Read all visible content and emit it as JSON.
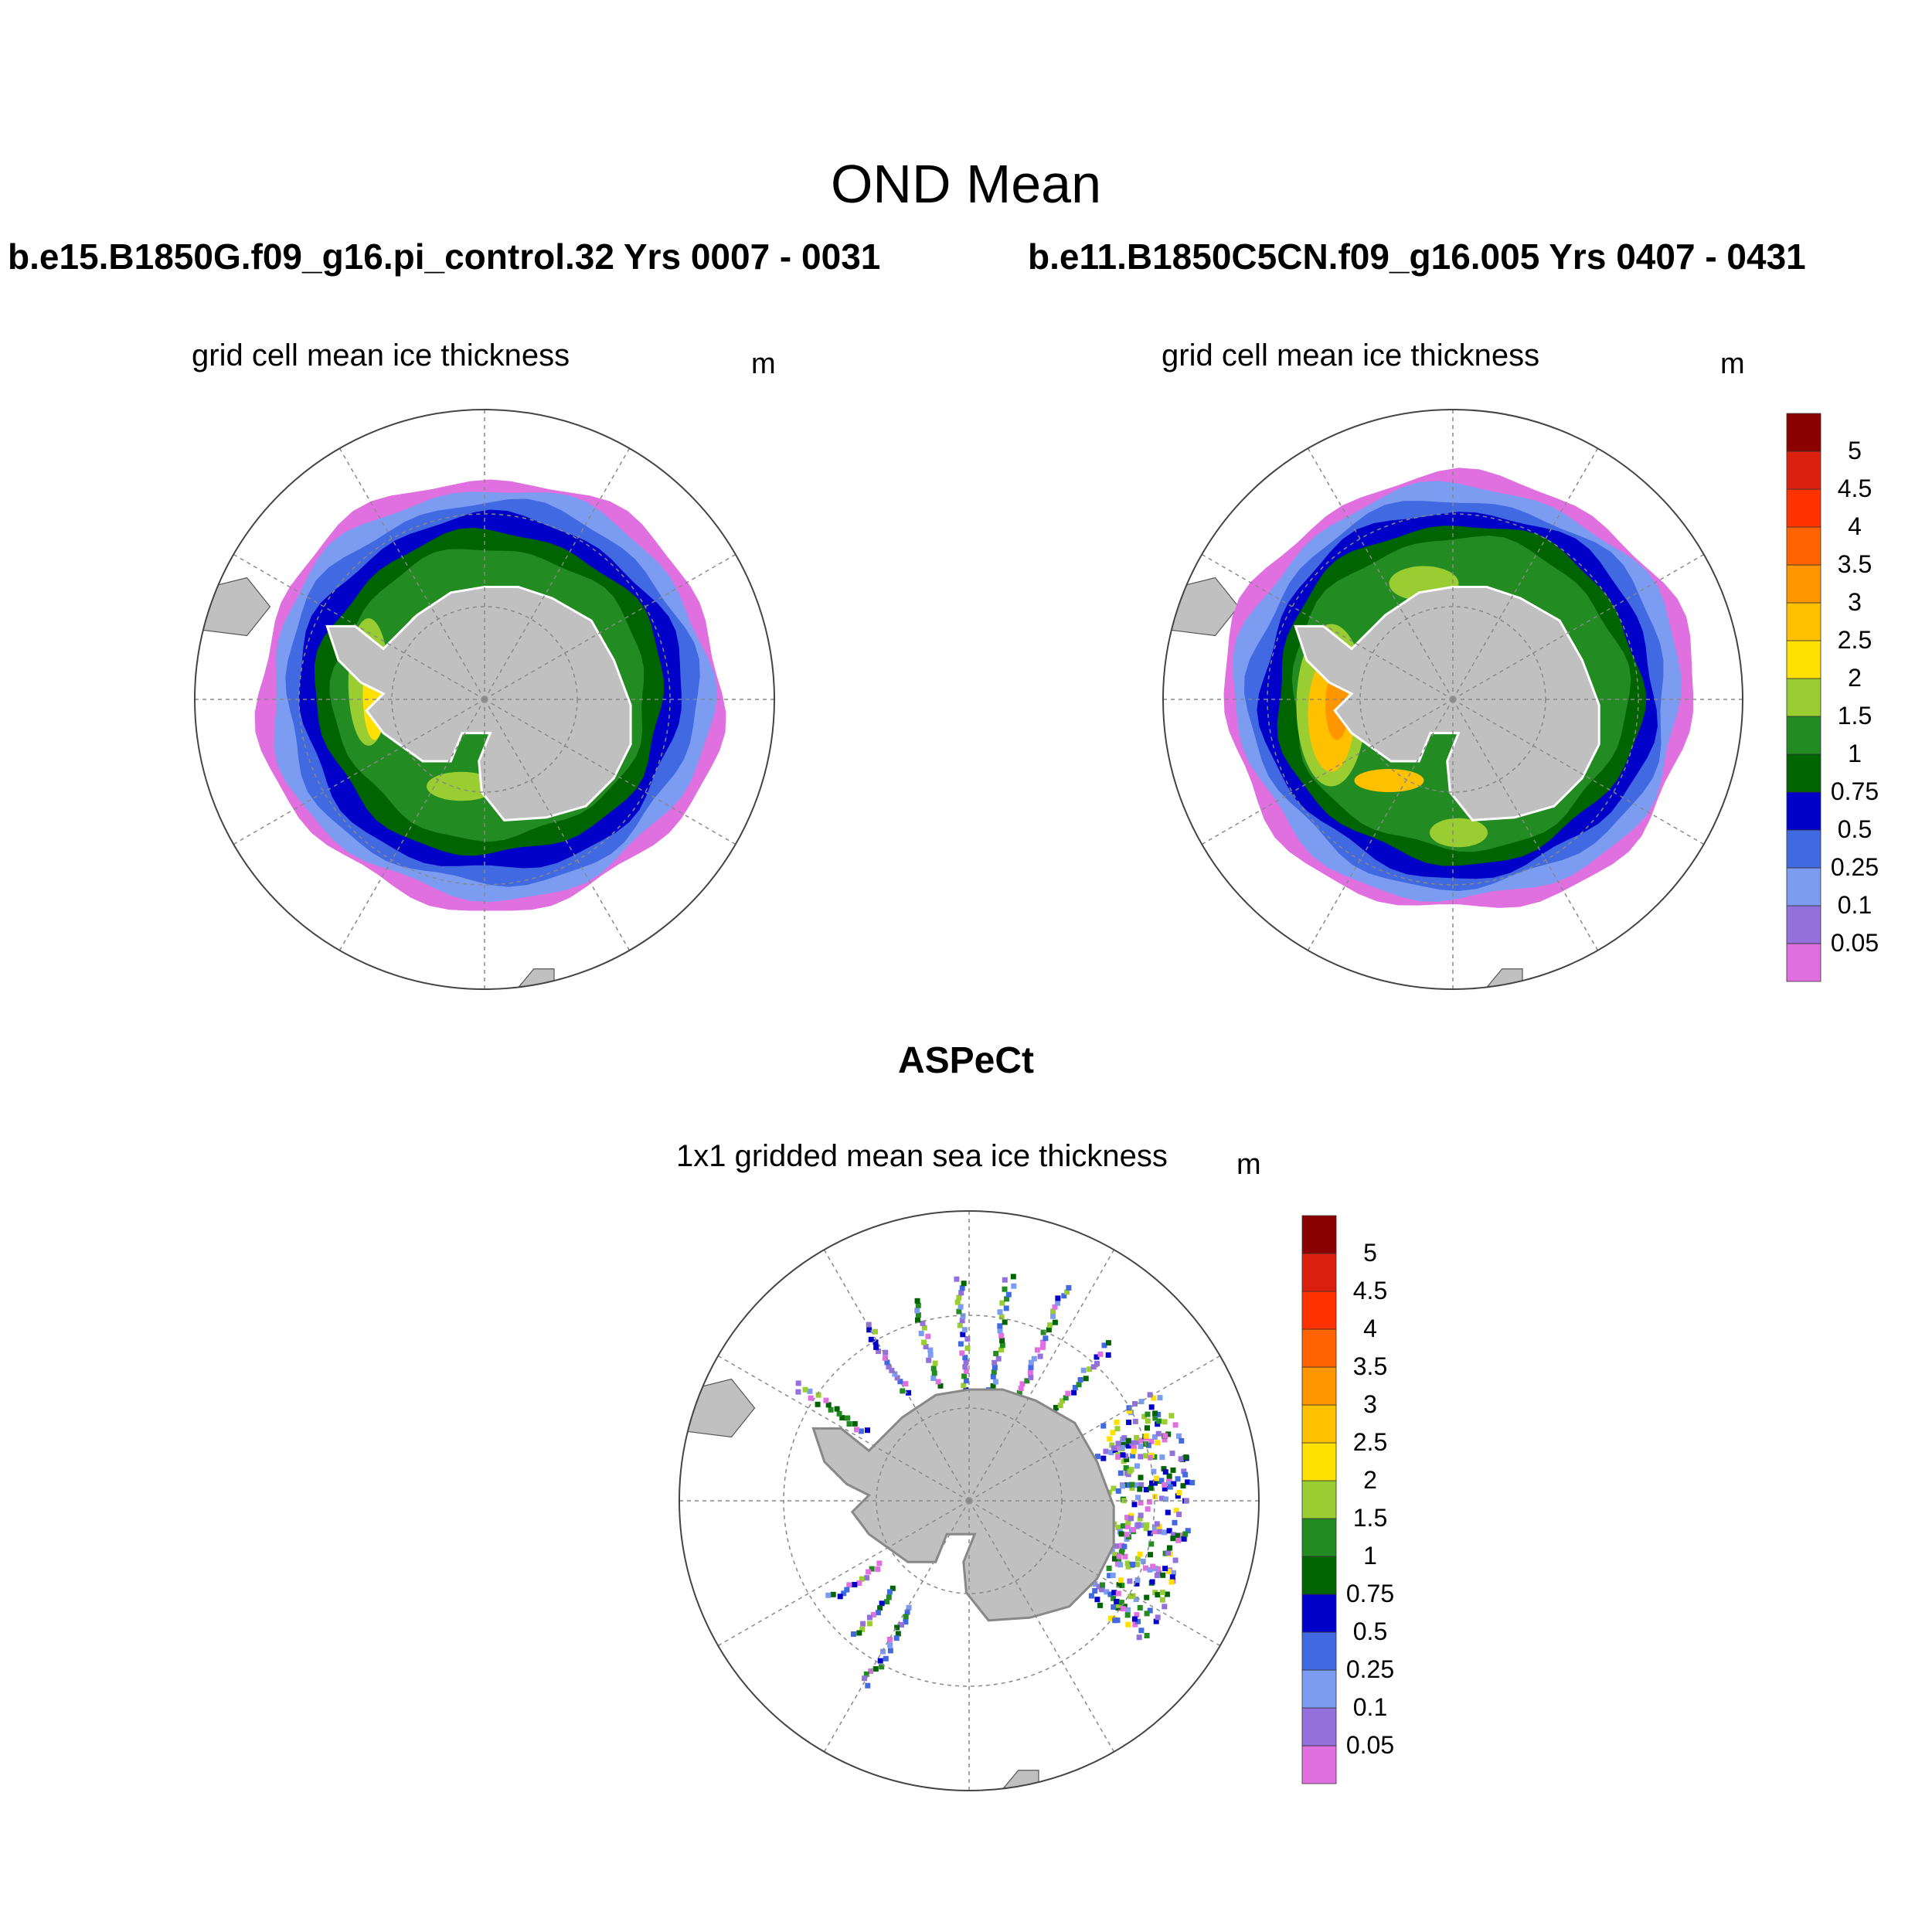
{
  "main_title": "OND Mean",
  "panels": [
    {
      "run": "b.e15.B1850G.f09_g16.pi_control.32  Yrs 0007 - 0031",
      "variable": "grid cell mean ice thickness",
      "unit": "m"
    },
    {
      "run": "b.e11.B1850C5CN.f09_g16.005  Yrs 0407 - 0431",
      "variable": "grid cell mean ice thickness",
      "unit": "m"
    }
  ],
  "observation": {
    "title": "ASPeCt",
    "variable": "1x1 gridded mean sea ice thickness",
    "unit": "m"
  },
  "colors": {
    "land": "#c0c0c0",
    "levels": [
      "#e070e0",
      "#9370db",
      "#7b9cf0",
      "#4169e1",
      "#0000c8",
      "#006400",
      "#228b22",
      "#9acd32",
      "#ffe000",
      "#ffc000",
      "#ff9600",
      "#ff6400",
      "#ff3200",
      "#dc2010",
      "#8b0000"
    ]
  },
  "chart_data": [
    {
      "type": "heatmap",
      "projection": "south-polar-stereographic",
      "variable": "grid cell mean ice thickness",
      "unit": "m",
      "colorbar_levels": [
        0.05,
        0.1,
        0.25,
        0.5,
        0.75,
        1,
        1.5,
        2,
        2.5,
        3,
        3.5,
        4,
        4.5,
        5
      ],
      "colorbar_labels": [
        "0.05",
        "0.1",
        "0.25",
        "0.5",
        "0.75",
        "1",
        "1.5",
        "2",
        "2.5",
        "3",
        "3.5",
        "4",
        "4.5",
        "5"
      ]
    },
    {
      "type": "heatmap",
      "projection": "south-polar-stereographic",
      "variable": "grid cell mean ice thickness",
      "unit": "m",
      "colorbar_levels": [
        0.05,
        0.1,
        0.25,
        0.5,
        0.75,
        1,
        1.5,
        2,
        2.5,
        3,
        3.5,
        4,
        4.5,
        5
      ],
      "colorbar_labels": [
        "0.05",
        "0.1",
        "0.25",
        "0.5",
        "0.75",
        "1",
        "1.5",
        "2",
        "2.5",
        "3",
        "3.5",
        "4",
        "4.5",
        "5"
      ]
    },
    {
      "type": "heatmap",
      "projection": "south-polar-stereographic",
      "variable": "1x1 gridded mean sea ice thickness",
      "unit": "m",
      "colorbar_levels": [
        0.05,
        0.1,
        0.25,
        0.5,
        0.75,
        1,
        1.5,
        2,
        2.5,
        3,
        3.5,
        4,
        4.5,
        5
      ],
      "colorbar_labels": [
        "0.05",
        "0.1",
        "0.25",
        "0.5",
        "0.75",
        "1",
        "1.5",
        "2",
        "2.5",
        "3",
        "3.5",
        "4",
        "4.5",
        "5"
      ]
    }
  ]
}
